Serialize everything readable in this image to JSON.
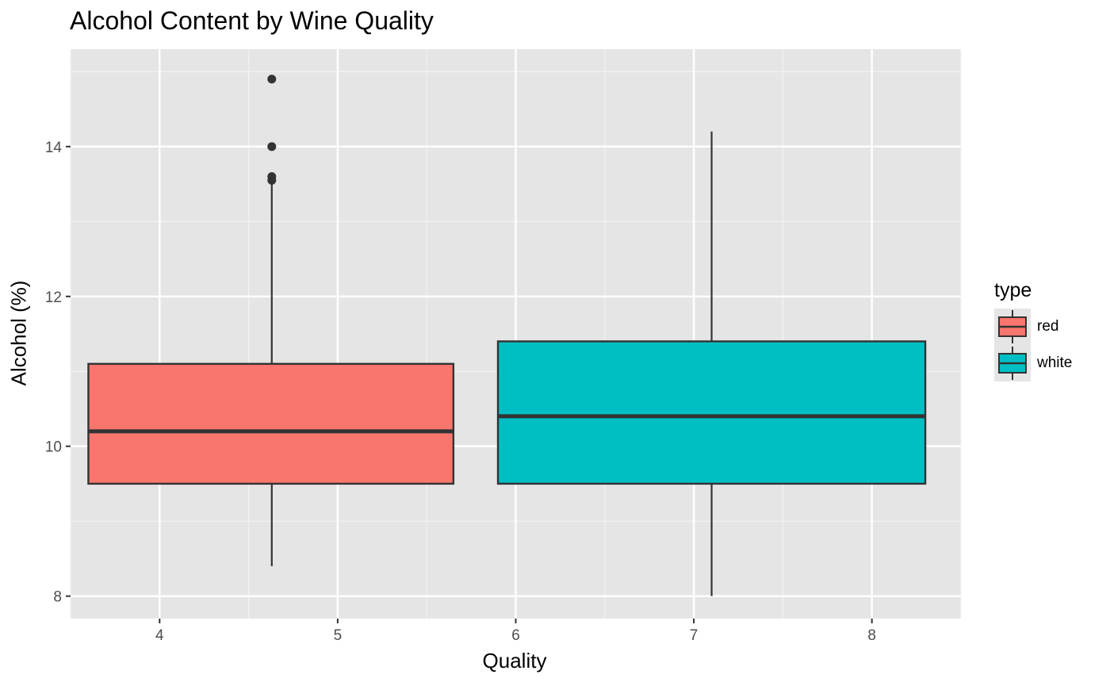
{
  "chart_data": {
    "type": "boxplot",
    "title": "Alcohol Content by Wine Quality",
    "xlabel": "Quality",
    "ylabel": "Alcohol (%)",
    "xlim": [
      3.5,
      8.5
    ],
    "ylim": [
      7.7,
      15.3
    ],
    "x_ticks": [
      4,
      5,
      6,
      7,
      8
    ],
    "y_ticks": [
      8,
      10,
      12,
      14
    ],
    "grid": true,
    "legend": {
      "title": "type",
      "position": "right"
    },
    "series": [
      {
        "name": "red",
        "color": "#F8766D",
        "x_range": [
          3.6,
          5.65
        ],
        "whisker_x": 4.63,
        "min": 8.4,
        "q1": 9.5,
        "median": 10.2,
        "q3": 11.1,
        "max": 13.5,
        "outliers": [
          13.55,
          13.6,
          14.0,
          14.9
        ]
      },
      {
        "name": "white",
        "color": "#00BFC4",
        "x_range": [
          5.9,
          8.3
        ],
        "whisker_x": 7.1,
        "min": 8.0,
        "q1": 9.5,
        "median": 10.4,
        "q3": 11.4,
        "max": 14.2,
        "outliers": []
      }
    ]
  }
}
